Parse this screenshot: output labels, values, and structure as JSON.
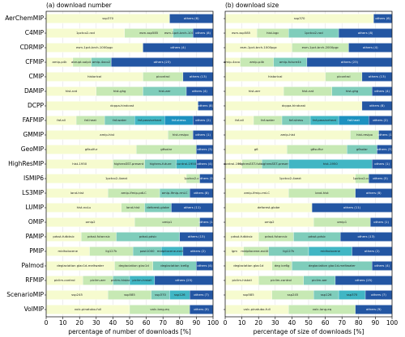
{
  "chart_data": {
    "type": "stacked-barh",
    "categories": [
      "AerChemMIP",
      "C4MIP",
      "CDRMIP",
      "CFMIP",
      "CMIP",
      "DAMIP",
      "DCPP",
      "FAFMIP",
      "GMMIP",
      "GeoMIP",
      "HighResMIP",
      "ISMIP6",
      "LS3MIP",
      "LUMIP",
      "OMIP",
      "PAMIP",
      "PMIP",
      "Palmod",
      "RFMIP",
      "ScenarioMIP",
      "VolMIP"
    ],
    "xlim": [
      0,
      100
    ],
    "xticks": [
      0,
      10,
      20,
      30,
      40,
      50,
      60,
      70,
      80,
      90,
      100
    ],
    "grid": true,
    "colors": [
      "#f6fbcf",
      "#c7e9b4",
      "#7fcdbb",
      "#41b6c4",
      "#1d91c0",
      "#225ea8"
    ],
    "others_color": "#2356a3",
    "panels": [
      {
        "title": "(a) download number",
        "xlabel": "percentage of number of downloads [%]",
        "rows": [
          [
            {
              "name": "ssp370",
              "value": 74
            },
            {
              "name": "others (6)",
              "value": 26
            }
          ],
          [
            {
              "name": "1pctco2-rad",
              "value": 47
            },
            {
              "name": "esm-ssp585",
              "value": 29
            },
            {
              "name": "esm-1pct-brch-1000PgC",
              "value": 12
            },
            {
              "name": "others (8)",
              "value": 12
            }
          ],
          [
            {
              "name": "esm-1pct-brch-1000pgc",
              "value": 58
            },
            {
              "name": "others (4)",
              "value": 42
            }
          ],
          [
            {
              "name": "amip-p4k",
              "value": 16
            },
            {
              "name": "abrupt-solp4p",
              "value": 11
            },
            {
              "name": "amip-4xco2",
              "value": 12
            },
            {
              "name": "others (23)",
              "value": 61
            }
          ],
          [
            {
              "name": "historical",
              "value": 58
            },
            {
              "name": "picontrol",
              "value": 24
            },
            {
              "name": "others (13)",
              "value": 18
            }
          ],
          [
            {
              "name": "hist-nat",
              "value": 30
            },
            {
              "name": "hist-ghg",
              "value": 28
            },
            {
              "name": "hist-aer",
              "value": 26
            },
            {
              "name": "others (4)",
              "value": 16
            }
          ],
          [
            {
              "name": "dcppa-hindcast",
              "value": 91
            },
            {
              "name": "others (8)",
              "value": 9
            }
          ],
          [
            {
              "name": "faf-all",
              "value": 18
            },
            {
              "name": "faf-heat",
              "value": 17
            },
            {
              "name": "faf-water",
              "value": 18
            },
            {
              "name": "faf-passiveheat",
              "value": 18
            },
            {
              "name": "faf-stress",
              "value": 17
            },
            {
              "name": "others (2)",
              "value": 12
            }
          ],
          [
            {
              "name": "amip-hist",
              "value": 73
            },
            {
              "name": "hist-resipo",
              "value": 15
            },
            {
              "name": "others (1)",
              "value": 12
            }
          ],
          [
            {
              "name": "g6sulfur",
              "value": 54
            },
            {
              "name": "g6solar",
              "value": 36
            },
            {
              "name": "others (3)",
              "value": 10
            }
          ],
          [
            {
              "name": "hist-1950",
              "value": 40
            },
            {
              "name": "highresSST-present",
              "value": 19
            },
            {
              "name": "highres-future",
              "value": 19
            },
            {
              "name": "control-1950",
              "value": 12
            },
            {
              "name": "others (4)",
              "value": 10
            }
          ],
          [
            {
              "name": "1pctco2-4xext",
              "value": 84
            },
            {
              "name": "1pctco2-cdr",
              "value": 8
            },
            {
              "name": "others (5)",
              "value": 8
            }
          ],
          [
            {
              "name": "land-hist",
              "value": 37
            },
            {
              "name": "amip-lfmip-pdLC",
              "value": 31
            },
            {
              "name": "amip-lfmip-rmLC",
              "value": 18
            },
            {
              "name": "others (8)",
              "value": 14
            }
          ],
          [
            {
              "name": "hist-noLu",
              "value": 45
            },
            {
              "name": "land-hist",
              "value": 14
            },
            {
              "name": "deforest-globe",
              "value": 16
            },
            {
              "name": "others (11)",
              "value": 25
            }
          ],
          [
            {
              "name": "omip2",
              "value": 53
            },
            {
              "name": "omip1",
              "value": 39
            },
            {
              "name": "others (1)",
              "value": 8
            }
          ],
          [
            {
              "name": "pdsst-futbksic",
              "value": 21
            },
            {
              "name": "pdsst-futarcsic",
              "value": 21
            },
            {
              "name": "pdsst-pdsic",
              "value": 38
            },
            {
              "name": "others (13)",
              "value": 20
            }
          ],
          [
            {
              "name": "midholocene",
              "value": 26
            },
            {
              "name": "lig127k",
              "value": 26
            },
            {
              "name": "past1000",
              "value": 17
            },
            {
              "name": "midpliocene-eoi400",
              "value": 13
            },
            {
              "name": "others (2)",
              "value": 18
            }
          ],
          [
            {
              "name": "deglaciation glac1d-meltwater",
              "value": 41
            },
            {
              "name": "deglaciation glac1d",
              "value": 23
            },
            {
              "name": "deglaciation ice6g",
              "value": 26
            },
            {
              "name": "others (4)",
              "value": 10
            }
          ],
          [
            {
              "name": "piclim-control",
              "value": 22
            },
            {
              "name": "piclim-aer",
              "value": 18
            },
            {
              "name": "piclim-histaer",
              "value": 10
            },
            {
              "name": "piclim-histall",
              "value": 15
            },
            {
              "name": "others (25)",
              "value": 35
            }
          ],
          [
            {
              "name": "ssp245",
              "value": 37
            },
            {
              "name": "ssp585",
              "value": 26
            },
            {
              "name": "ssp370",
              "value": 11
            },
            {
              "name": "ssp126",
              "value": 12
            },
            {
              "name": "others (7)",
              "value": 14
            }
          ],
          [
            {
              "name": "volc-pinatubo-full",
              "value": 50
            },
            {
              "name": "volc-long-eq",
              "value": 36
            },
            {
              "name": "others (9)",
              "value": 14
            }
          ]
        ]
      },
      {
        "title": "(b) download size",
        "xlabel": "percentage of size of downloads [%]",
        "rows": [
          [
            {
              "name": "ssp370",
              "value": 89
            },
            {
              "name": "others (6)",
              "value": 11
            }
          ],
          [
            {
              "name": "esm-ssp585",
              "value": 19
            },
            {
              "name": "hist-bgc",
              "value": 19
            },
            {
              "name": "1pctco2-rad",
              "value": 30
            },
            {
              "name": "others (8)",
              "value": 32
            }
          ],
          [
            {
              "name": "esm-1pct-brch-1000pgc",
              "value": 40
            },
            {
              "name": "esm-1pct-brch-2000pgc",
              "value": 34
            },
            {
              "name": "others (4)",
              "value": 26
            }
          ],
          [
            {
              "name": "amip-4xco2",
              "value": 9
            },
            {
              "name": "amip-p4k",
              "value": 20
            },
            {
              "name": "amip-future4k",
              "value": 20
            },
            {
              "name": "others (23)",
              "value": 51
            }
          ],
          [
            {
              "name": "historical",
              "value": 60
            },
            {
              "name": "picontrol",
              "value": 22
            },
            {
              "name": "others (13)",
              "value": 18
            }
          ],
          [
            {
              "name": "hist-aer",
              "value": 35
            },
            {
              "name": "hist-nat",
              "value": 29
            },
            {
              "name": "hist-ghg",
              "value": 24
            },
            {
              "name": "others (4)",
              "value": 12
            }
          ],
          [
            {
              "name": "dcppa-hindcast",
              "value": 82
            },
            {
              "name": "others (8)",
              "value": 18
            }
          ],
          [
            {
              "name": "faf-all",
              "value": 17
            },
            {
              "name": "faf-water",
              "value": 17
            },
            {
              "name": "faf-stress",
              "value": 17
            },
            {
              "name": "faf-passiveheat",
              "value": 17
            },
            {
              "name": "faf-heat",
              "value": 18
            },
            {
              "name": "others (2)",
              "value": 14
            }
          ],
          [
            {
              "name": "amip-hist",
              "value": 75
            },
            {
              "name": "hist-resipo",
              "value": 17
            },
            {
              "name": "others (1)",
              "value": 8
            }
          ],
          [
            {
              "name": "g6",
              "value": 37
            },
            {
              "name": "g6sulfur",
              "value": 36
            },
            {
              "name": "g6solar",
              "value": 18
            },
            {
              "name": "others (3)",
              "value": 9
            }
          ],
          [
            {
              "name": "control-1950",
              "value": 10
            },
            {
              "name": "highresSST-future",
              "value": 12
            },
            {
              "name": "highresSST-present",
              "value": 16
            },
            {
              "name": "hist-1950",
              "value": 50
            },
            {
              "name": "others (1)",
              "value": 12
            }
          ],
          [
            {
              "name": "1pctco2-4xext",
              "value": 78
            },
            {
              "name": "1pctco2-cdr",
              "value": 8
            },
            {
              "name": "others (5)",
              "value": 14
            }
          ],
          [
            {
              "name": "amip-lfmip-rmLC",
              "value": 38
            },
            {
              "name": "land-hist",
              "value": 40
            },
            {
              "name": "others (8)",
              "value": 22
            }
          ],
          [
            {
              "name": "deforest-globe",
              "value": 52
            },
            {
              "name": "others (11)",
              "value": 48
            }
          ],
          [
            {
              "name": "omip2",
              "value": 53
            },
            {
              "name": "omip1",
              "value": 34
            },
            {
              "name": "others (1)",
              "value": 13
            }
          ],
          [
            {
              "name": "pdsst-futbksic",
              "value": 20
            },
            {
              "name": "pdsst-futarcsic",
              "value": 21
            },
            {
              "name": "pdsst-pdsic",
              "value": 28
            },
            {
              "name": "others (13)",
              "value": 31
            }
          ],
          [
            {
              "name": "lgm",
              "value": 11
            },
            {
              "name": "midpliocene-eoi400",
              "value": 15
            },
            {
              "name": "lig127k",
              "value": 24
            },
            {
              "name": "midholocene",
              "value": 26
            },
            {
              "name": "others (2)",
              "value": 24
            }
          ],
          [
            {
              "name": "deglaciation glac1d",
              "value": 28
            },
            {
              "name": "deg ice6g",
              "value": 12
            },
            {
              "name": "deglaciation glac1d-meltwater",
              "value": 48
            },
            {
              "name": "others (4)",
              "value": 12
            }
          ],
          [
            {
              "name": "piclim-histall",
              "value": 20
            },
            {
              "name": "piclim-control",
              "value": 27
            },
            {
              "name": "piclim-aer",
              "value": 19
            },
            {
              "name": "others (25)",
              "value": 34
            }
          ],
          [
            {
              "name": "ssp585",
              "value": 28
            },
            {
              "name": "ssp245",
              "value": 25
            },
            {
              "name": "ssp126",
              "value": 15
            },
            {
              "name": "ssp370",
              "value": 16
            },
            {
              "name": "others (7)",
              "value": 16
            }
          ],
          [
            {
              "name": "volc-pinatubo-full",
              "value": 38
            },
            {
              "name": "volc-long-eq",
              "value": 40
            },
            {
              "name": "others (9)",
              "value": 22
            }
          ]
        ]
      }
    ]
  }
}
